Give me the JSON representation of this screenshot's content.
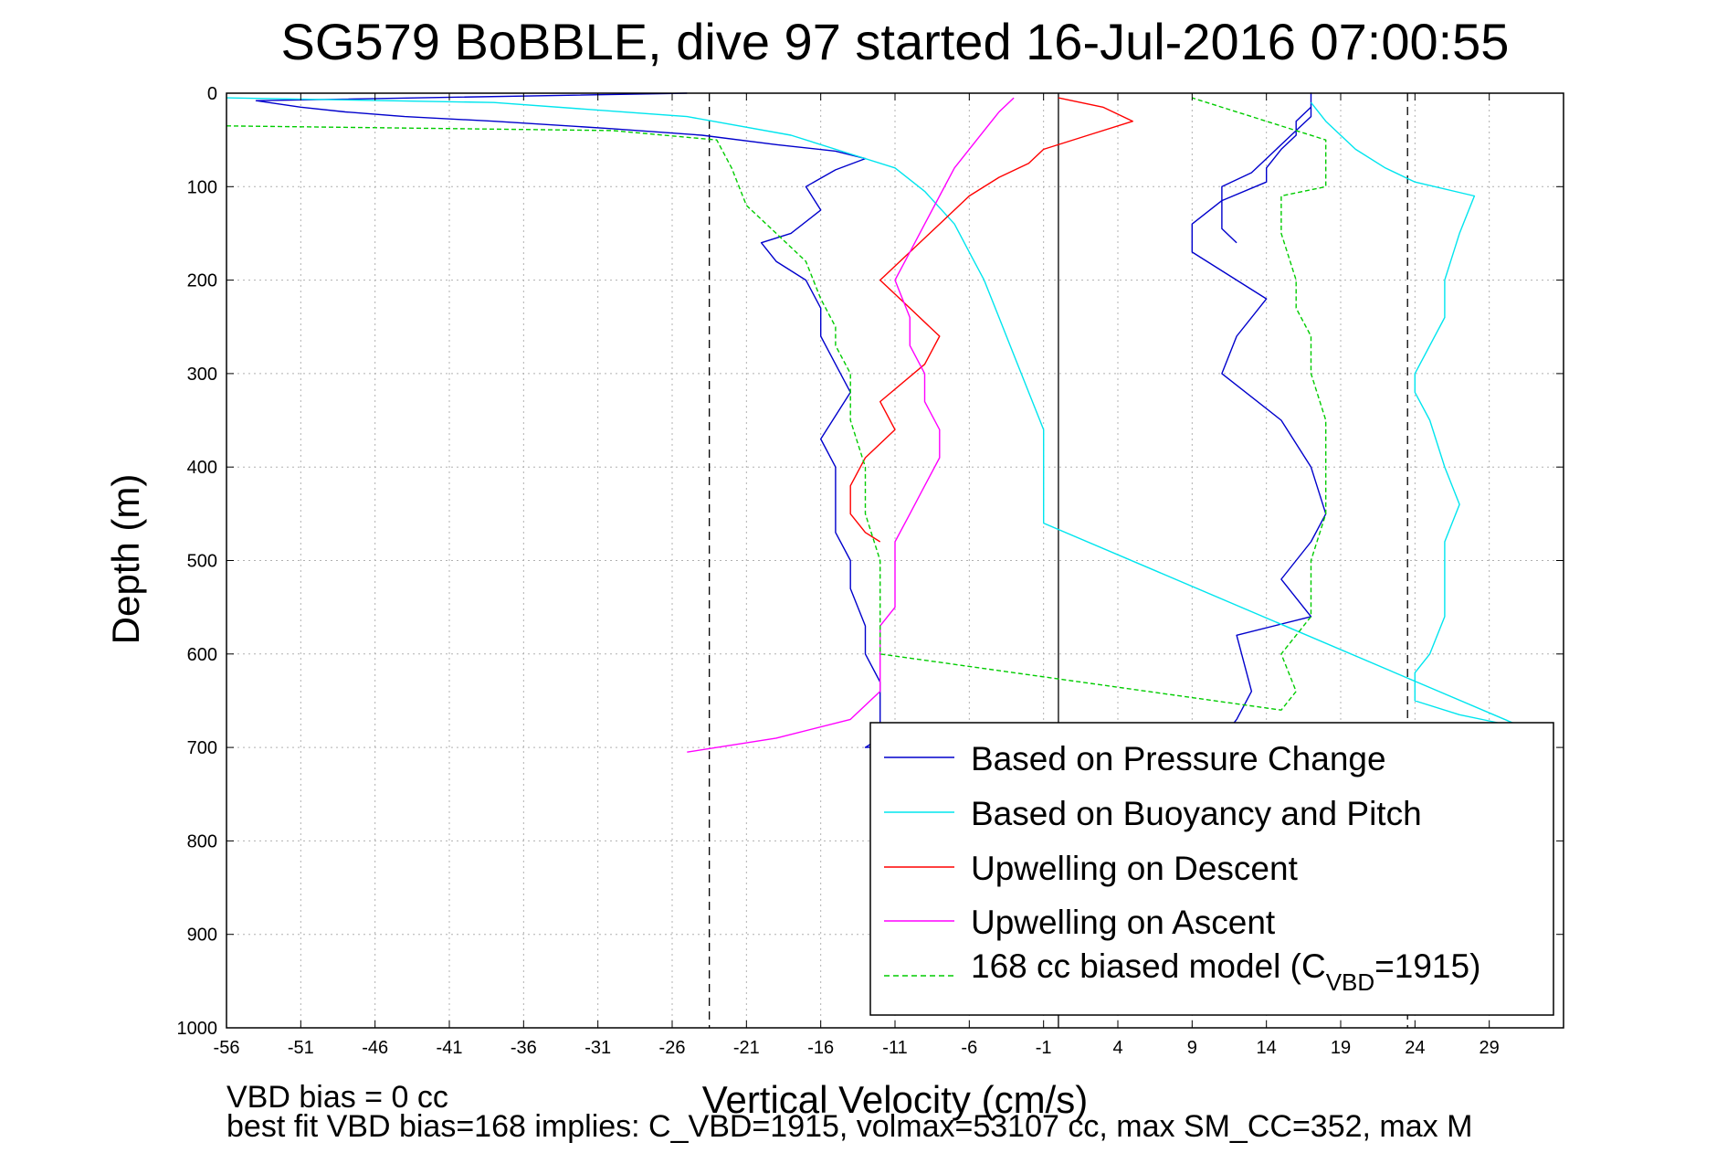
{
  "chart_data": {
    "type": "line",
    "title": "SG579 BoBBLE, dive 97 started 16-Jul-2016 07:00:55",
    "xlabel": "Vertical Velocity (cm/s)",
    "ylabel": "Depth (m)",
    "xlim": [
      -56,
      34
    ],
    "ylim": [
      0,
      1000
    ],
    "y_reversed": true,
    "grid": true,
    "legend_position": "bottom-right",
    "xticks": [
      -56,
      -51,
      -46,
      -41,
      -36,
      -31,
      -26,
      -21,
      -16,
      -11,
      -6,
      -1,
      4,
      9,
      14,
      19,
      24,
      29
    ],
    "yticks": [
      0,
      100,
      200,
      300,
      400,
      500,
      600,
      700,
      800,
      900,
      1000
    ],
    "reference_lines": [
      {
        "x": -23.5,
        "style": "dashed",
        "color": "#000000"
      },
      {
        "x": 0,
        "style": "solid",
        "color": "#000000"
      },
      {
        "x": 23.5,
        "style": "dashed",
        "color": "#000000"
      }
    ],
    "series": [
      {
        "name": "Based on Pressure Change",
        "color": "#0000cc",
        "style": "solid",
        "x": [
          -25,
          -54,
          -51,
          -48,
          -44,
          -38,
          -30,
          -24,
          -19,
          -15,
          -13,
          -15,
          -17,
          -16,
          -18,
          -20,
          -19,
          -17,
          -16,
          -16,
          -15,
          -14,
          -16,
          -15,
          -15,
          -15,
          -14,
          -14,
          -13,
          -13,
          -12,
          -12,
          -12,
          -12,
          -13,
          11,
          12,
          13,
          12,
          17,
          15,
          17,
          18,
          17,
          15,
          11,
          12,
          14,
          9,
          9,
          11,
          14,
          14,
          15,
          16,
          16,
          17,
          17,
          17,
          17,
          17,
          16,
          15,
          14,
          13,
          11,
          11,
          11,
          11,
          12
        ],
        "y": [
          0,
          8,
          15,
          20,
          25,
          30,
          38,
          45,
          55,
          62,
          70,
          82,
          100,
          125,
          150,
          160,
          180,
          200,
          230,
          260,
          290,
          320,
          370,
          400,
          430,
          470,
          500,
          530,
          570,
          600,
          630,
          660,
          680,
          690,
          700,
          690,
          670,
          640,
          580,
          560,
          520,
          480,
          450,
          400,
          350,
          300,
          260,
          220,
          170,
          140,
          115,
          95,
          80,
          60,
          45,
          30,
          15,
          5,
          0,
          12,
          25,
          40,
          55,
          70,
          85,
          100,
          115,
          130,
          145,
          160
        ]
      },
      {
        "name": "Based on Buoyancy and Pitch",
        "color": "#00e5ee",
        "style": "solid",
        "x": [
          -56,
          -38,
          -25,
          -18,
          -14,
          -11,
          -9,
          -7,
          -6,
          -5,
          -4,
          -3,
          -2,
          -1,
          -1,
          33,
          30,
          27,
          24,
          24,
          25,
          26,
          26,
          26,
          27,
          26,
          25,
          24,
          24,
          25,
          26,
          26,
          27,
          28,
          24,
          22,
          20,
          18,
          17
        ],
        "y": [
          5,
          10,
          25,
          45,
          65,
          80,
          105,
          140,
          170,
          200,
          240,
          280,
          320,
          360,
          460,
          690,
          675,
          665,
          650,
          620,
          600,
          560,
          530,
          480,
          440,
          400,
          350,
          320,
          300,
          270,
          240,
          200,
          150,
          110,
          95,
          80,
          60,
          30,
          10
        ]
      },
      {
        "name": "Upwelling on Descent",
        "color": "#ff0000",
        "style": "solid",
        "x": [
          0,
          3,
          5,
          2,
          -1,
          -2,
          -4,
          -6,
          -8,
          -10,
          -12,
          -10,
          -8,
          -9,
          -12,
          -11,
          -13,
          -14,
          -14,
          -13,
          -12
        ],
        "y": [
          5,
          15,
          30,
          45,
          60,
          75,
          90,
          110,
          140,
          170,
          200,
          230,
          260,
          290,
          330,
          360,
          390,
          420,
          450,
          470,
          480
        ]
      },
      {
        "name": "Upwelling on Ascent",
        "color": "#ff00ff",
        "style": "solid",
        "x": [
          -25,
          -19,
          -14,
          -12,
          -12,
          -12,
          -11,
          -11,
          -11,
          -10,
          -9,
          -8,
          -8,
          -9,
          -9,
          -10,
          -10,
          -11,
          -10,
          -9,
          -8,
          -7,
          -6,
          -5,
          -4,
          -3
        ],
        "y": [
          705,
          690,
          670,
          640,
          600,
          570,
          550,
          520,
          480,
          450,
          420,
          390,
          360,
          330,
          300,
          270,
          240,
          200,
          170,
          140,
          110,
          80,
          60,
          40,
          20,
          5
        ]
      },
      {
        "name": "168 cc biased model (C_VBD=1915)",
        "color": "#00cc00",
        "style": "dashed",
        "x": [
          -56,
          -30,
          -23,
          -22,
          -21,
          -19,
          -17,
          -16,
          -15,
          -15,
          -14,
          -14,
          -13,
          -13,
          -12,
          -12,
          -12,
          15,
          16,
          15,
          17,
          17,
          17,
          18,
          18,
          18,
          17,
          17,
          16,
          16,
          15,
          15,
          18,
          18,
          9
        ],
        "y": [
          35,
          40,
          50,
          80,
          120,
          150,
          180,
          220,
          250,
          270,
          300,
          350,
          400,
          450,
          500,
          550,
          600,
          660,
          640,
          600,
          560,
          550,
          500,
          450,
          400,
          350,
          300,
          260,
          230,
          200,
          150,
          110,
          100,
          50,
          5
        ]
      }
    ],
    "legend": {
      "entries": [
        {
          "label": "Based on Pressure Change",
          "color": "#0000cc",
          "style": "solid"
        },
        {
          "label": "Based on Buoyancy and Pitch",
          "color": "#00e5ee",
          "style": "solid"
        },
        {
          "label": "Upwelling on Descent",
          "color": "#ff0000",
          "style": "solid"
        },
        {
          "label": "Upwelling on Ascent",
          "color": "#ff00ff",
          "style": "solid"
        },
        {
          "label_main": "168 cc biased model (C",
          "label_sub": "VBD",
          "label_tail": "=1915)",
          "color": "#00cc00",
          "style": "dashed"
        }
      ]
    },
    "annotations": [
      "VBD bias = 0 cc",
      "best fit VBD bias=168 implies: C_VBD=1915, volmax=53107 cc, max SM_CC=352, max M"
    ]
  }
}
